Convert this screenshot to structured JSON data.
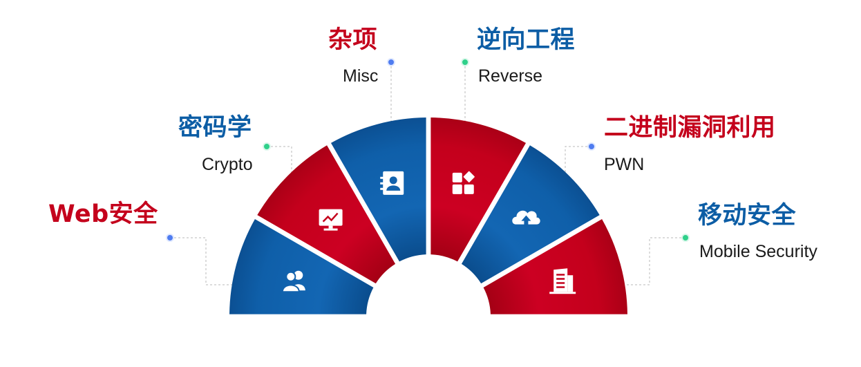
{
  "colors": {
    "red": "#c4001c",
    "blue": "#0c5da5",
    "dot_blue": "#4f7cf0",
    "dot_green": "#2fd08a",
    "leader": "#b8b8b8"
  },
  "segments": [
    {
      "id": "web",
      "title": "Web安全",
      "subtitle": "",
      "color": "red",
      "fill": "blue",
      "icon": "users-icon"
    },
    {
      "id": "crypto",
      "title": "密码学",
      "subtitle": "Crypto",
      "color": "blue",
      "fill": "red",
      "icon": "monitor-chart-icon"
    },
    {
      "id": "misc",
      "title": "杂项",
      "subtitle": "Misc",
      "color": "red",
      "fill": "blue",
      "icon": "contact-card-icon"
    },
    {
      "id": "reverse",
      "title": "逆向工程",
      "subtitle": "Reverse",
      "color": "blue",
      "fill": "red",
      "icon": "app-blocks-icon"
    },
    {
      "id": "pwn",
      "title": "二进制漏洞利用",
      "subtitle": "PWN",
      "color": "red",
      "fill": "blue",
      "icon": "cloud-upload-icon"
    },
    {
      "id": "mobile",
      "title": "移动安全",
      "subtitle": "Mobile Security",
      "color": "blue",
      "fill": "red",
      "icon": "building-icon"
    }
  ]
}
